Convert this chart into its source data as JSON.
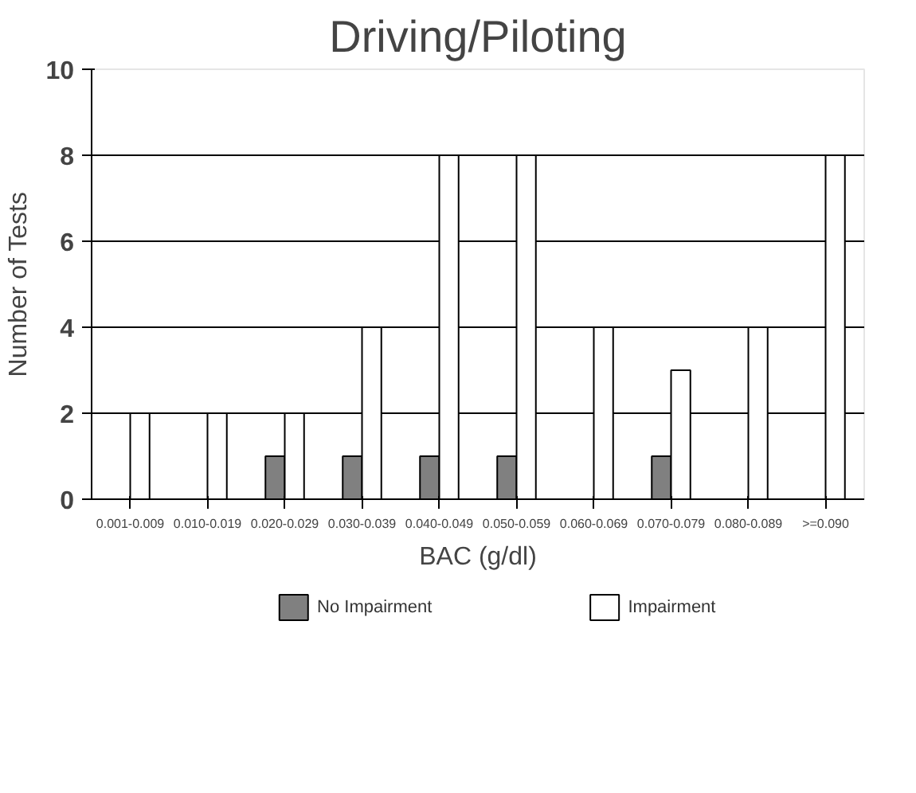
{
  "chart_data": {
    "type": "bar",
    "title": "Driving/Piloting",
    "xlabel": "BAC (g/dl)",
    "ylabel": "Number of Tests",
    "categories": [
      "0.001-0.009",
      "0.010-0.019",
      "0.020-0.029",
      "0.030-0.039",
      "0.040-0.049",
      "0.050-0.059",
      "0.060-0.069",
      "0.070-0.079",
      "0.080-0.089",
      ">=0.090"
    ],
    "series": [
      {
        "name": "No Impairment",
        "color": "#808080",
        "values": [
          0,
          0,
          1,
          1,
          1,
          1,
          0,
          1,
          0,
          0
        ]
      },
      {
        "name": "Impairment",
        "color": "#ffffff",
        "values": [
          2,
          2,
          2,
          4,
          8,
          8,
          4,
          3,
          4,
          8
        ]
      }
    ],
    "ylim": [
      0,
      10
    ],
    "yticks": [
      0,
      2,
      4,
      6,
      8,
      10
    ],
    "grid": "y",
    "legend": "bottom"
  }
}
